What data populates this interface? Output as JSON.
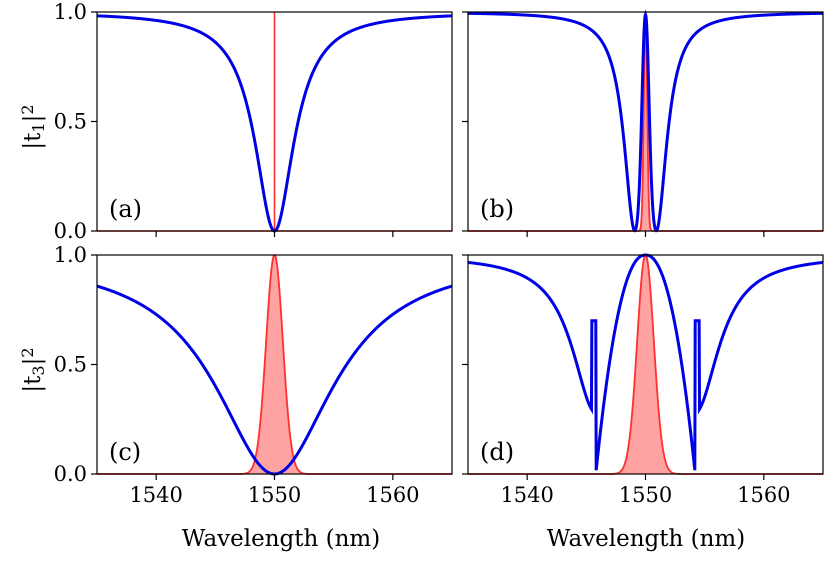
{
  "chart_data": [
    {
      "type": "line",
      "panel": "(a)",
      "xlim": [
        1535,
        1565
      ],
      "ylim": [
        0.0,
        1.0
      ],
      "yticks": [
        "0.0",
        "0.5",
        "1.0"
      ],
      "xticks": [
        1540,
        1550,
        1560
      ],
      "ylabel": "|t1|^2",
      "xlabel": "",
      "series": [
        {
          "name": "transmission",
          "color": "#0000e6",
          "shape": "lorentz_dip",
          "center": 1550,
          "hwhm": 2.0,
          "depth": 1.0
        },
        {
          "name": "pulse",
          "color": "#ff3030",
          "shape": "narrow_spike",
          "center": 1550,
          "width": 0.05,
          "peak": 1.0,
          "filled": false
        }
      ]
    },
    {
      "type": "line",
      "panel": "(b)",
      "xlim": [
        1535,
        1565
      ],
      "ylim": [
        0.0,
        1.0
      ],
      "yticks": [
        "0.0",
        "0.5",
        "1.0"
      ],
      "xticks": [
        1540,
        1550,
        1560
      ],
      "ylabel": "",
      "xlabel": "",
      "series": [
        {
          "name": "transmission",
          "color": "#0000e6",
          "shape": "split_dip",
          "center": 1550,
          "hwhm": 2.0,
          "split": 0.9
        },
        {
          "name": "pulse",
          "color": "#ff3030",
          "shape": "gaussian",
          "center": 1550,
          "width": 0.2,
          "peak": 1.0,
          "filled": true
        }
      ]
    },
    {
      "type": "line",
      "panel": "(c)",
      "xlim": [
        1535,
        1565
      ],
      "ylim": [
        0.0,
        1.0
      ],
      "yticks": [
        "0.0",
        "0.5",
        "1.0"
      ],
      "xticks": [
        1540,
        1550,
        1560
      ],
      "ylabel": "|t3|^2",
      "xlabel": "Wavelength (nm)",
      "series": [
        {
          "name": "transmission",
          "color": "#0000e6",
          "shape": "lorentz_dip_squared",
          "center": 1550,
          "hwhm": 6.1,
          "depth": 1.0
        },
        {
          "name": "pulse",
          "color": "#ff3030",
          "shape": "gaussian",
          "center": 1550,
          "width": 1.0,
          "peak": 1.0,
          "filled": true
        }
      ]
    },
    {
      "type": "line",
      "panel": "(d)",
      "xlim": [
        1535,
        1565
      ],
      "ylim": [
        0.0,
        1.0
      ],
      "yticks": [
        "0.0",
        "0.5",
        "1.0"
      ],
      "xticks": [
        1540,
        1550,
        1560
      ],
      "ylabel": "",
      "xlabel": "Wavelength (nm)",
      "series": [
        {
          "name": "transmission",
          "color": "#0000e6",
          "shape": "flat_band",
          "center": 1550,
          "edges": [
            1545.8,
            1554.2
          ]
        },
        {
          "name": "pulse",
          "color": "#ff3030",
          "shape": "gaussian",
          "center": 1550,
          "width": 1.0,
          "peak": 1.0,
          "filled": true
        }
      ]
    }
  ],
  "axis_text": {
    "ylabel_top_main": "|t",
    "ylabel_top_sub": "1",
    "ylabel_top_end": "|",
    "ylabel_top_sup": "2",
    "ylabel_bottom_main": "|t",
    "ylabel_bottom_sub": "3",
    "ylabel_bottom_end": "|",
    "ylabel_bottom_sup": "2",
    "xlabel": "Wavelength (nm)"
  }
}
